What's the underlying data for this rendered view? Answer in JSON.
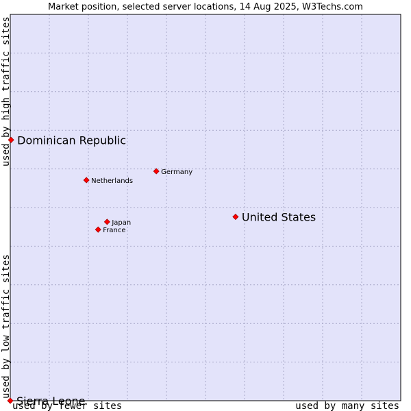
{
  "chart_data": {
    "type": "scatter",
    "title": "Market position, selected server locations, 14 Aug 2025, W3Techs.com",
    "x_axis": {
      "low_label": "used by fewer sites",
      "high_label": "used by many sites",
      "range": [
        0,
        100
      ]
    },
    "y_axis": {
      "low_label": "used by low traffic sites",
      "high_label": "used by high traffic sites",
      "range": [
        0,
        100
      ]
    },
    "grid": true,
    "colors": {
      "background": "#e3e3fa",
      "point": "#ff0000",
      "border": "#000000"
    },
    "points": [
      {
        "name": "Dominican Republic",
        "x": 0.2,
        "y": 67.5,
        "emphasis": "large"
      },
      {
        "name": "United States",
        "x": 57.7,
        "y": 47.6,
        "emphasis": "large"
      },
      {
        "name": "Sierra Leone",
        "x": 0,
        "y": 0,
        "emphasis": "large"
      },
      {
        "name": "Germany",
        "x": 37.4,
        "y": 59.4,
        "emphasis": "small"
      },
      {
        "name": "Netherlands",
        "x": 19.5,
        "y": 57.1,
        "emphasis": "small"
      },
      {
        "name": "Japan",
        "x": 24.8,
        "y": 46.3,
        "emphasis": "small"
      },
      {
        "name": "France",
        "x": 22.5,
        "y": 44.3,
        "emphasis": "small"
      }
    ]
  }
}
